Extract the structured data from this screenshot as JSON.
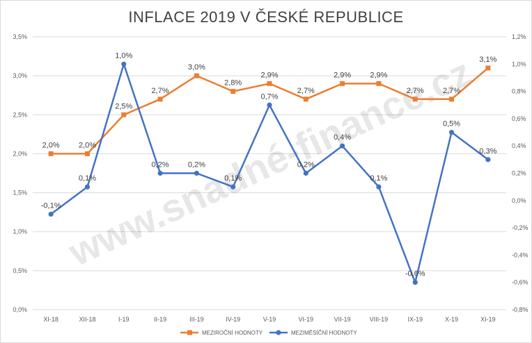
{
  "chart_data": {
    "type": "line",
    "title": "INFLACE 2019 V ČESKÉ REPUBLICE",
    "watermark": "www.snadné-finance.cz",
    "categories": [
      "XI-18",
      "XII-18",
      "I-19",
      "II-19",
      "III-19",
      "IV-19",
      "V-19",
      "VI-19",
      "VII-19",
      "VIII-19",
      "IX-19",
      "X-19",
      "XI-19"
    ],
    "series": [
      {
        "name": "MEZIROČNÍ HODNOTY",
        "axis": "left",
        "color": "#ed7d31",
        "marker": "square",
        "values": [
          2.0,
          2.0,
          2.5,
          2.7,
          3.0,
          2.8,
          2.9,
          2.7,
          2.9,
          2.9,
          2.7,
          2.7,
          3.1
        ],
        "labels": [
          "2,0%",
          "2,0%",
          "2,5%",
          "2,7%",
          "3,0%",
          "2,8%",
          "2,9%",
          "2,7%",
          "2,9%",
          "2,9%",
          "2,7%",
          "2,7%",
          "3,1%"
        ]
      },
      {
        "name": "MEZIMĚSÍČNÍ HODNOTY",
        "axis": "right",
        "color": "#4472c4",
        "marker": "circle",
        "values": [
          -0.1,
          0.1,
          1.0,
          0.2,
          0.2,
          0.1,
          0.7,
          0.2,
          0.4,
          0.1,
          -0.6,
          0.5,
          0.3
        ],
        "labels": [
          "-0,1%",
          "0,1%",
          "1,0%",
          "0,2%",
          "0,2%",
          "0,1%",
          "0,7%",
          "0,2%",
          "0,4%",
          "0,1%",
          "-0,6%",
          "0,5%",
          "0,3%"
        ]
      }
    ],
    "y_left": {
      "min": 0,
      "max": 3.5,
      "ticks": [
        0,
        0.5,
        1.0,
        1.5,
        2.0,
        2.5,
        3.0,
        3.5
      ],
      "tick_labels": [
        "0,0%",
        "0,5%",
        "1,0%",
        "1,5%",
        "2,0%",
        "2,5%",
        "3,0%",
        "3,5%"
      ]
    },
    "y_right": {
      "min": -0.8,
      "max": 1.2,
      "ticks": [
        -0.8,
        -0.6,
        -0.4,
        -0.2,
        0.0,
        0.2,
        0.4,
        0.6,
        0.8,
        1.0,
        1.2
      ],
      "tick_labels": [
        "-0,8%",
        "-0,6%",
        "-0,4%",
        "-0,2%",
        "0,0%",
        "0,2%",
        "0,4%",
        "0,6%",
        "0,8%",
        "1,0%",
        "1,2%"
      ]
    },
    "grid": true,
    "legend_position": "bottom-center",
    "xlabel": "",
    "ylabel": ""
  }
}
